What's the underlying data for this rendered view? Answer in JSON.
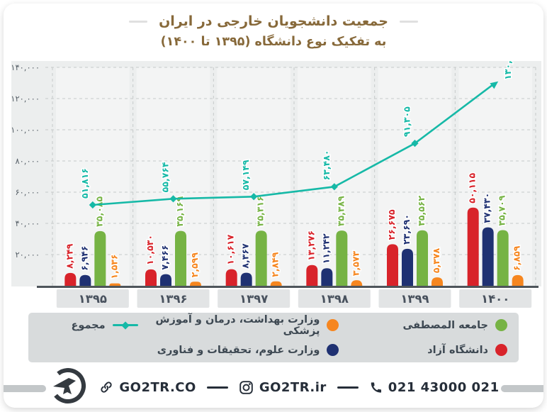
{
  "title": {
    "line1": "جمعیت دانشجویان خارجی در ایران",
    "line2": "به تفکیک نوع دانشگاه (۱۳۹۵ تا ۱۴۰۰)"
  },
  "chart_data": {
    "type": "bar",
    "title": "جمعیت دانشجویان خارجی در ایران به تفکیک نوع دانشگاه (۱۳۹۵ تا ۱۴۰۰)",
    "categories": [
      "۱۳۹۵",
      "۱۳۹۶",
      "۱۳۹۷",
      "۱۳۹۸",
      "۱۳۹۹",
      "۱۴۰۰"
    ],
    "ylim": [
      0,
      140000
    ],
    "grid": true,
    "legend_position": "bottom",
    "ytick_values": [
      0,
      20000,
      40000,
      60000,
      80000,
      100000,
      120000,
      140000
    ],
    "ytick_labels": [
      "۰",
      "۲۰,۰۰۰",
      "۴۰,۰۰۰",
      "۶۰,۰۰۰",
      "۸۰,۰۰۰",
      "۱۰۰,۰۰۰",
      "۱۲۰,۰۰۰",
      "۱۴۰,۰۰۰"
    ],
    "series": [
      {
        "name": "دانشگاه آزاد",
        "color": "#d8232a",
        "values": [
          8249,
          10530,
          10617,
          13276,
          26675,
          50115
        ],
        "labels": [
          "۸,۲۴۹",
          "۱۰,۵۳۰",
          "۱۰,۶۱۷",
          "۱۳,۲۷۶",
          "۲۶,۶۷۵",
          "۵۰,۱۱۵"
        ]
      },
      {
        "name": "وزارت علوم، تحقیقات و فناوری",
        "color": "#1f3172",
        "values": [
          6946,
          7466,
          8367,
          11242,
          23690,
          37430
        ],
        "labels": [
          "۶,۹۴۶",
          "۷,۴۶۶",
          "۸,۳۶۷",
          "۱۱,۲۴۲",
          "۲۳,۶۹۰",
          "۳۷,۴۳۰"
        ]
      },
      {
        "name": "جامعه المصطفی",
        "color": "#76b344",
        "values": [
          35085,
          35169,
          35316,
          35389,
          35562,
          35709
        ],
        "labels": [
          "۳۵,۰۸۵",
          "۳۵,۱۶۹",
          "۳۵,۳۱۶",
          "۳۵,۳۸۹",
          "۳۵,۵۶۲",
          "۳۵,۷۰۹"
        ]
      },
      {
        "name": "وزارت بهداشت، درمان و آموزش پزشکی",
        "color": "#f6861f",
        "values": [
          1536,
          2599,
          2849,
          3573,
          5378,
          6859
        ],
        "labels": [
          "۱,۵۳۶",
          "۲,۵۹۹",
          "۲,۸۴۹",
          "۳,۵۷۳",
          "۵,۳۷۸",
          "۶,۸۵۹"
        ]
      }
    ],
    "line_series": {
      "name": "مجموع",
      "color": "#16b9a7",
      "values": [
        51816,
        55764,
        57149,
        63480,
        91305,
        130113
      ],
      "labels": [
        "۵۱,۸۱۶",
        "۵۵,۷۶۴",
        "۵۷,۱۴۹",
        "۶۳,۴۸۰",
        "۹۱,۳۰۵",
        "۱۳۰,۱۱۳"
      ]
    }
  },
  "legend": {
    "items": [
      {
        "label": "جامعه المصطفی",
        "color": "#76b344"
      },
      {
        "label": "وزارت بهداشت، درمان و آموزش پزشکی",
        "color": "#f6861f"
      },
      {
        "label": "مجموع",
        "color": "#16b9a7"
      },
      {
        "label": "دانشگاه آزاد",
        "color": "#d8232a"
      },
      {
        "label": "وزارت علوم، تحقیقات و فناوری",
        "color": "#1f3172"
      }
    ]
  },
  "footer": {
    "website": "GO2TR.CO",
    "instagram": "GO2TR.ir",
    "phone": "021 43000 021"
  }
}
